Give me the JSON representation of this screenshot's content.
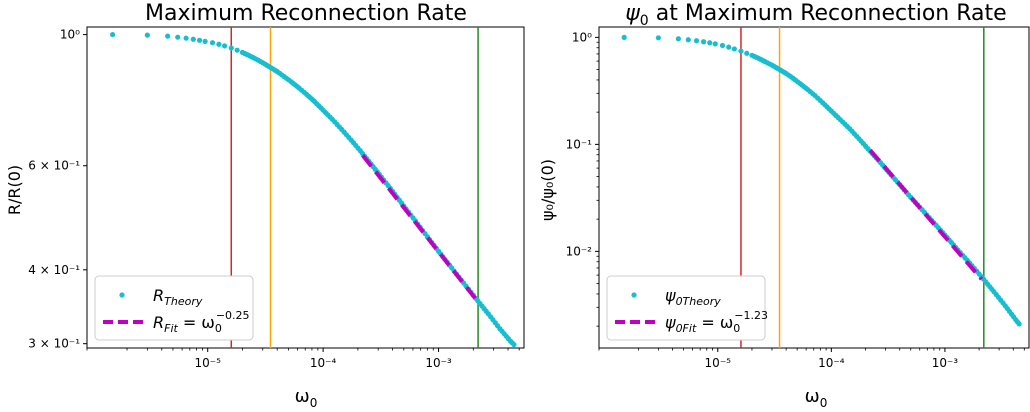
{
  "chart_data": [
    {
      "type": "scatter",
      "title": "Maximum Reconnection Rate",
      "xlabel": "ω₀",
      "ylabel": "R/R(0)",
      "xscale": "log",
      "yscale": "log",
      "xlim": [
        9e-07,
        0.0055
      ],
      "ylim": [
        0.295,
        1.03
      ],
      "x_ticks": [
        {
          "value": 1e-05,
          "label": "10⁻⁵"
        },
        {
          "value": 0.0001,
          "label": "10⁻⁴"
        },
        {
          "value": 0.001,
          "label": "10⁻³"
        }
      ],
      "y_ticks": [
        {
          "value": 1.0,
          "label": "10⁰"
        },
        {
          "value": 0.6,
          "label": "6 × 10⁻¹"
        },
        {
          "value": 0.4,
          "label": "4 × 10⁻¹"
        },
        {
          "value": 0.3,
          "label": "3 × 10⁻¹"
        }
      ],
      "series": [
        {
          "name": "R_Theory",
          "style": "points",
          "color": "#17BECF",
          "points": [
            [
              1.5e-06,
              1.0
            ],
            [
              3e-06,
              0.998
            ],
            [
              4.5e-06,
              0.994
            ],
            [
              5.5e-06,
              0.99
            ],
            [
              6.5e-06,
              0.986
            ],
            [
              7.5e-06,
              0.982
            ],
            [
              8.5e-06,
              0.978
            ],
            [
              9.5e-06,
              0.974
            ],
            [
              1.1e-05,
              0.969
            ],
            [
              1.25e-05,
              0.963
            ],
            [
              1.4e-05,
              0.957
            ],
            [
              1.6e-05,
              0.949
            ],
            [
              1.8e-05,
              0.941
            ],
            [
              2e-05,
              0.933
            ],
            [
              2.3e-05,
              0.921
            ],
            [
              2.6e-05,
              0.91
            ],
            [
              3e-05,
              0.896
            ],
            [
              3.4e-05,
              0.883
            ],
            [
              4e-05,
              0.866
            ],
            [
              4.6e-05,
              0.849
            ],
            [
              5.3e-05,
              0.832
            ],
            [
              6.2e-05,
              0.812
            ],
            [
              7.2e-05,
              0.792
            ],
            [
              8.4e-05,
              0.771
            ],
            [
              0.0001,
              0.745
            ],
            [
              0.00012,
              0.719
            ],
            [
              0.000145,
              0.691
            ],
            [
              0.000175,
              0.663
            ],
            [
              0.00021,
              0.636
            ],
            [
              0.00026,
              0.604
            ],
            [
              0.00032,
              0.574
            ],
            [
              0.0004,
              0.543
            ],
            [
              0.0005,
              0.513
            ],
            [
              0.00063,
              0.484
            ],
            [
              0.0008,
              0.455
            ],
            [
              0.001,
              0.43
            ],
            [
              0.0013,
              0.403
            ],
            [
              0.00165,
              0.38
            ],
            [
              0.0021,
              0.358
            ],
            [
              0.0027,
              0.337
            ],
            [
              0.0034,
              0.318
            ],
            [
              0.0042,
              0.303
            ],
            [
              0.0045,
              0.299
            ]
          ]
        },
        {
          "name": "R_Fit",
          "style": "dashed-line",
          "color": "#BF00BF",
          "x_range": [
            0.00022,
            0.0021
          ],
          "exponent": -0.25,
          "points": [
            [
              0.00022,
              0.625
            ],
            [
              0.0021,
              0.357
            ]
          ]
        }
      ],
      "vlines": [
        {
          "x": 1.6e-05,
          "color": "#D62728"
        },
        {
          "x": 3.5e-05,
          "color": "#FFA500"
        },
        {
          "x": 0.0022,
          "color": "#228B22"
        }
      ],
      "legend": {
        "placement": "lower-left",
        "entries": [
          {
            "label": "R",
            "sub": "Theory",
            "sup": ""
          },
          {
            "label": "R",
            "sub": "Fit",
            "tail": " = ω",
            "tail_sub": "0",
            "sup": "−0.25"
          }
        ]
      }
    },
    {
      "type": "scatter",
      "title_prefix": "ψ",
      "title_sub": "0",
      "title_rest": " at Maximum Reconnection Rate",
      "xlabel": "ω₀",
      "ylabel": "ψ₀/ψ₀(0)",
      "xscale": "log",
      "yscale": "log",
      "xlim": [
        9e-07,
        0.0055
      ],
      "ylim": [
        0.00125,
        1.25
      ],
      "x_ticks": [
        {
          "value": 1e-05,
          "label": "10⁻⁵"
        },
        {
          "value": 0.0001,
          "label": "10⁻⁴"
        },
        {
          "value": 0.001,
          "label": "10⁻³"
        }
      ],
      "y_ticks": [
        {
          "value": 1.0,
          "label": "10⁰"
        },
        {
          "value": 0.1,
          "label": "10⁻¹"
        },
        {
          "value": 0.01,
          "label": "10⁻²"
        }
      ],
      "series": [
        {
          "name": "ψ0Theory",
          "style": "points",
          "color": "#17BECF",
          "points": [
            [
              1.5e-06,
              1.0
            ],
            [
              3e-06,
              0.99
            ],
            [
              4.5e-06,
              0.97
            ],
            [
              5.5e-06,
              0.95
            ],
            [
              6.5e-06,
              0.93
            ],
            [
              7.5e-06,
              0.91
            ],
            [
              8.5e-06,
              0.89
            ],
            [
              9.5e-06,
              0.87
            ],
            [
              1.1e-05,
              0.84
            ],
            [
              1.25e-05,
              0.81
            ],
            [
              1.4e-05,
              0.78
            ],
            [
              1.6e-05,
              0.745
            ],
            [
              1.8e-05,
              0.71
            ],
            [
              2e-05,
              0.68
            ],
            [
              2.3e-05,
              0.635
            ],
            [
              2.6e-05,
              0.595
            ],
            [
              3e-05,
              0.55
            ],
            [
              3.4e-05,
              0.51
            ],
            [
              4e-05,
              0.46
            ],
            [
              4.6e-05,
              0.415
            ],
            [
              5.3e-05,
              0.37
            ],
            [
              6.2e-05,
              0.325
            ],
            [
              7.2e-05,
              0.285
            ],
            [
              8.4e-05,
              0.245
            ],
            [
              0.0001,
              0.205
            ],
            [
              0.00012,
              0.17
            ],
            [
              0.000145,
              0.14
            ],
            [
              0.000175,
              0.113
            ],
            [
              0.00021,
              0.091
            ],
            [
              0.00026,
              0.071
            ],
            [
              0.00032,
              0.055
            ],
            [
              0.0004,
              0.042
            ],
            [
              0.0005,
              0.032
            ],
            [
              0.00063,
              0.0245
            ],
            [
              0.0008,
              0.0185
            ],
            [
              0.001,
              0.0142
            ],
            [
              0.0013,
              0.0103
            ],
            [
              0.00165,
              0.0078
            ],
            [
              0.0021,
              0.0058
            ],
            [
              0.0027,
              0.0042
            ],
            [
              0.0034,
              0.0031
            ],
            [
              0.0042,
              0.0023
            ],
            [
              0.0045,
              0.0021
            ]
          ]
        },
        {
          "name": "ψ0Fit",
          "style": "dashed-line",
          "color": "#BF00BF",
          "x_range": [
            0.00022,
            0.0021
          ],
          "exponent": -1.23,
          "points": [
            [
              0.00022,
              0.088
            ],
            [
              0.0021,
              0.0055
            ]
          ]
        }
      ],
      "vlines": [
        {
          "x": 1.6e-05,
          "color": "#D62728"
        },
        {
          "x": 3.5e-05,
          "color": "#FFA500"
        },
        {
          "x": 0.0022,
          "color": "#228B22"
        }
      ],
      "legend": {
        "placement": "lower-left",
        "entries": [
          {
            "label": "ψ",
            "sub": "0Theory",
            "sup": ""
          },
          {
            "label": "ψ",
            "sub": "0Fit",
            "tail": " = ω",
            "tail_sub": "0",
            "sup": "−1.23"
          }
        ]
      }
    }
  ],
  "labels": {
    "left_title": "Maximum Reconnection Rate",
    "left_xlabel": "ω",
    "left_xlabel_sub": "0",
    "left_ylabel": "R/R(0)",
    "right_title_prefix": "ψ",
    "right_title_sub": "0",
    "right_title_rest": " at Maximum Reconnection Rate",
    "right_xlabel": "ω",
    "right_xlabel_sub": "0",
    "right_ylabel": "ψ₀/ψ₀(0)"
  }
}
